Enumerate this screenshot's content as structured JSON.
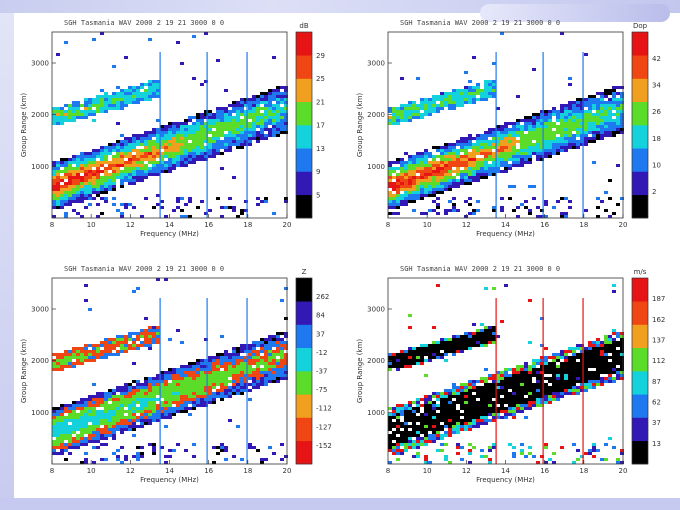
{
  "chart_data": [
    {
      "type": "heatmap",
      "title": "SGH Tasmania  WAV 2000 2 19 21 3000 0 0",
      "xlabel": "Frequency (MHz)",
      "ylabel": "Group Range (km)",
      "xticks": [
        "8",
        "10",
        "12",
        "14",
        "16",
        "18",
        "20"
      ],
      "xlim": [
        8,
        20
      ],
      "yticks": [
        "1000",
        "2000",
        "3000"
      ],
      "ylim": [
        0,
        3600
      ],
      "colorbar_unit": "dB",
      "colorbar_labels": [
        "5",
        "9",
        "13",
        "17",
        "21",
        "25",
        "29"
      ],
      "colorbar_colors": [
        "#000000",
        "#3218b4",
        "#1e78f0",
        "#14d2dc",
        "#5adc28",
        "#f0a01e",
        "#f04614",
        "#e61414"
      ]
    },
    {
      "type": "heatmap",
      "title": "SGH Tasmania  WAV 2000 2 19 21 3000 0 0",
      "xlabel": "Frequency (MHz)",
      "ylabel": "Group Range (km)",
      "xticks": [
        "8",
        "10",
        "12",
        "14",
        "16",
        "18",
        "20"
      ],
      "xlim": [
        8,
        20
      ],
      "yticks": [
        "1000",
        "2000",
        "3000"
      ],
      "ylim": [
        0,
        3600
      ],
      "colorbar_unit": "Dop",
      "colorbar_labels": [
        "2",
        "10",
        "18",
        "26",
        "34",
        "42"
      ],
      "colorbar_colors": [
        "#000000",
        "#3218b4",
        "#1e78f0",
        "#14d2dc",
        "#5adc28",
        "#f0a01e",
        "#f04614",
        "#e61414"
      ]
    },
    {
      "type": "heatmap",
      "title": "SGH Tasmania  WAV 2000 2 19 21 3000 0 0",
      "xlabel": "Frequency (MHz)",
      "ylabel": "Group Range (km)",
      "xticks": [
        "8",
        "10",
        "12",
        "14",
        "16",
        "18",
        "20"
      ],
      "xlim": [
        8,
        20
      ],
      "yticks": [
        "1000",
        "2000",
        "3000"
      ],
      "ylim": [
        0,
        3600
      ],
      "colorbar_unit": "Z",
      "colorbar_labels": [
        "-152",
        "-127",
        "-112",
        "-75",
        "-37",
        "-12",
        "37",
        "84",
        "262"
      ],
      "colorbar_colors": [
        "#e61414",
        "#f04614",
        "#f0a01e",
        "#5adc28",
        "#14d2dc",
        "#1e78f0",
        "#3218b4",
        "#000000"
      ]
    },
    {
      "type": "heatmap",
      "title": "SGH Tasmania  WAV 2000 2 19 21 3000 0 0",
      "xlabel": "Frequency (MHz)",
      "ylabel": "Group Range (km)",
      "xticks": [
        "8",
        "10",
        "12",
        "14",
        "16",
        "18",
        "20"
      ],
      "xlim": [
        8,
        20
      ],
      "yticks": [
        "1000",
        "2000",
        "3000"
      ],
      "ylim": [
        0,
        3600
      ],
      "colorbar_unit": "m/s",
      "colorbar_labels": [
        "13",
        "37",
        "62",
        "87",
        "112",
        "137",
        "162",
        "187"
      ],
      "colorbar_colors": [
        "#000000",
        "#3218b4",
        "#1e78f0",
        "#14d2dc",
        "#5adc28",
        "#f0a01e",
        "#f04614",
        "#e61414"
      ]
    }
  ]
}
